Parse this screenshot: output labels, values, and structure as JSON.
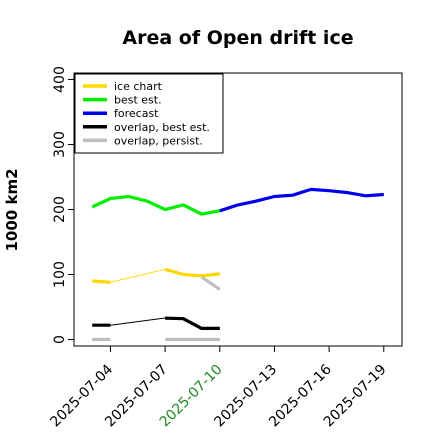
{
  "chart_data": {
    "type": "line",
    "title": "Area of Open drift ice",
    "xlabel": "",
    "ylabel": "1000 km2",
    "ylim": [
      -10,
      410
    ],
    "xlim": [
      "2025-07-02",
      "2025-07-20"
    ],
    "grid": false,
    "legend_position": "top-left",
    "yticks": [
      0,
      100,
      200,
      300,
      400
    ],
    "xticks": [
      {
        "date": "2025-07-04",
        "label": "2025-07-04",
        "color": "#000000"
      },
      {
        "date": "2025-07-07",
        "label": "2025-07-07",
        "color": "#000000"
      },
      {
        "date": "2025-07-10",
        "label": "2025-07-10",
        "color": "#228b22"
      },
      {
        "date": "2025-07-13",
        "label": "2025-07-13",
        "color": "#000000"
      },
      {
        "date": "2025-07-16",
        "label": "2025-07-16",
        "color": "#000000"
      },
      {
        "date": "2025-07-19",
        "label": "2025-07-19",
        "color": "#000000"
      }
    ],
    "legend": [
      {
        "label": "ice chart",
        "color": "#ffd700"
      },
      {
        "label": "best est.",
        "color": "#00ee00"
      },
      {
        "label": "forecast",
        "color": "#0000ee"
      },
      {
        "label": "overlap, best est.",
        "color": "#000000"
      },
      {
        "label": "overlap, persist.",
        "color": "#bebebe"
      }
    ],
    "series": [
      {
        "color": "#00ee00",
        "points": [
          {
            "x": "2025-07-03",
            "y": 204
          },
          {
            "x": "2025-07-04",
            "y": 217
          },
          {
            "x": "2025-07-05",
            "y": 220
          },
          {
            "x": "2025-07-06",
            "y": 213
          },
          {
            "x": "2025-07-07",
            "y": 200
          },
          {
            "x": "2025-07-08",
            "y": 207
          },
          {
            "x": "2025-07-09",
            "y": 193
          },
          {
            "x": "2025-07-10",
            "y": 198
          }
        ]
      },
      {
        "color": "#0000ee",
        "points": [
          {
            "x": "2025-07-10",
            "y": 198
          },
          {
            "x": "2025-07-11",
            "y": 207
          },
          {
            "x": "2025-07-12",
            "y": 213
          },
          {
            "x": "2025-07-13",
            "y": 220
          },
          {
            "x": "2025-07-14",
            "y": 222
          },
          {
            "x": "2025-07-15",
            "y": 231
          },
          {
            "x": "2025-07-16",
            "y": 229
          },
          {
            "x": "2025-07-17",
            "y": 226
          },
          {
            "x": "2025-07-18",
            "y": 221
          },
          {
            "x": "2025-07-19",
            "y": 223
          }
        ]
      },
      {
        "color": "#ffd700",
        "connector": true,
        "segments": [
          [
            {
              "x": "2025-07-03",
              "y": 90
            },
            {
              "x": "2025-07-04",
              "y": 88
            }
          ],
          [
            {
              "x": "2025-07-07",
              "y": 108
            },
            {
              "x": "2025-07-08",
              "y": 100
            },
            {
              "x": "2025-07-09",
              "y": 98
            },
            {
              "x": "2025-07-10",
              "y": 101
            }
          ]
        ]
      },
      {
        "color": "#bebebe",
        "segments": [
          [
            {
              "x": "2025-07-09",
              "y": 96
            },
            {
              "x": "2025-07-10",
              "y": 77
            }
          ],
          [
            {
              "x": "2025-07-03",
              "y": 0
            },
            {
              "x": "2025-07-04",
              "y": 0
            }
          ],
          [
            {
              "x": "2025-07-07",
              "y": 0
            },
            {
              "x": "2025-07-10",
              "y": 0
            }
          ]
        ]
      },
      {
        "color": "#000000",
        "connector": true,
        "segments": [
          [
            {
              "x": "2025-07-03",
              "y": 22
            },
            {
              "x": "2025-07-04",
              "y": 22
            }
          ],
          [
            {
              "x": "2025-07-07",
              "y": 33
            },
            {
              "x": "2025-07-08",
              "y": 32
            },
            {
              "x": "2025-07-09",
              "y": 17
            },
            {
              "x": "2025-07-10",
              "y": 17
            }
          ]
        ]
      }
    ]
  }
}
